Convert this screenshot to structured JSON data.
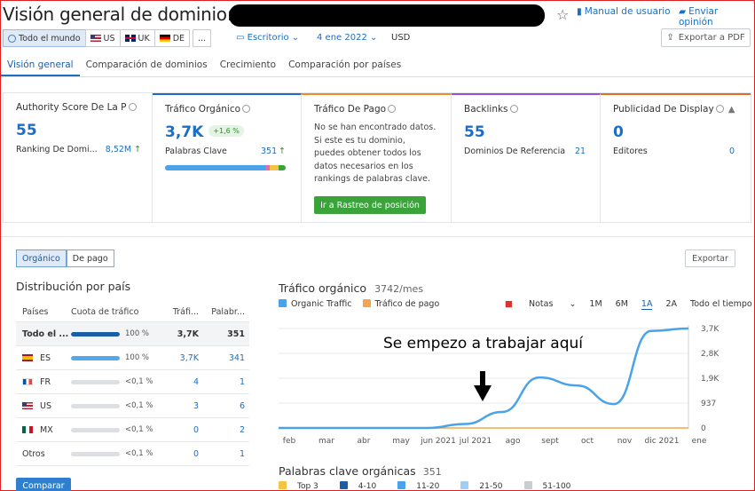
{
  "header": {
    "title": "Visión general de dominio:",
    "manual_label": "Manual de usuario",
    "feedback_label": "Enviar opinión"
  },
  "filters": {
    "regions": [
      {
        "label": "Todo el mundo",
        "selected": true
      },
      {
        "label": "US"
      },
      {
        "label": "UK"
      },
      {
        "label": "DE"
      },
      {
        "label": "..."
      }
    ],
    "device": "Escritorio",
    "date": "4 ene 2022",
    "currency": "USD",
    "export_pdf": "Exportar a PDF"
  },
  "tabs": [
    "Visión general",
    "Comparación de dominios",
    "Crecimiento",
    "Comparación por países"
  ],
  "kpis": {
    "authority": {
      "title": "Authority Score De La P",
      "value": "55",
      "sub_label": "Ranking De Domi...",
      "sub_value": "8,52M",
      "accent": "#1a6fc4"
    },
    "organic": {
      "title": "Tráfico Orgánico",
      "value": "3,7K",
      "change": "+1,6 %",
      "sub_label": "Palabras Clave",
      "sub_value": "351",
      "accent": "#1a6fc4"
    },
    "paid": {
      "title": "Tráfico De Pago",
      "text": "No se han encontrado datos. Si este es tu dominio, puedes obtener todos los datos necesarios en los rankings de palabras clave.",
      "button": "Ir a Rastreo de posición",
      "accent": "#f08a24"
    },
    "backlinks": {
      "title": "Backlinks",
      "value": "55",
      "sub_label": "Dominios De Referencia",
      "sub_value": "21",
      "accent": "#9b4fd1"
    },
    "display": {
      "title": "Publicidad De Display",
      "value": "0",
      "sub_label": "Editores",
      "sub_value": "0",
      "accent": "#e06d20"
    }
  },
  "section": {
    "seg_organic": "Orgánico",
    "seg_paid": "De pago",
    "export": "Exportar",
    "dist_title": "Distribución por país",
    "compare_button": "Comparar"
  },
  "country_table": {
    "headers": [
      "Países",
      "Cuota de tráfico",
      "Tráfi...",
      "Palabr..."
    ],
    "rows": [
      {
        "country": "Todo el ...",
        "flag": "",
        "share": 100,
        "share_label": "100 %",
        "traffic": "3,7K",
        "keywords": "351",
        "bar_color": "#1a5ea6"
      },
      {
        "country": "ES",
        "flag": "es",
        "share": 100,
        "share_label": "100 %",
        "traffic": "3,7K",
        "keywords": "341",
        "bar_color": "#55a8ea"
      },
      {
        "country": "FR",
        "flag": "fr",
        "share": 0.1,
        "share_label": "<0,1 %",
        "traffic": "4",
        "keywords": "1",
        "bar_color": "#55a8ea"
      },
      {
        "country": "US",
        "flag": "us",
        "share": 0.1,
        "share_label": "<0,1 %",
        "traffic": "3",
        "keywords": "6",
        "bar_color": "#55a8ea"
      },
      {
        "country": "MX",
        "flag": "mx",
        "share": 0.1,
        "share_label": "<0,1 %",
        "traffic": "0",
        "keywords": "2",
        "bar_color": "#55a8ea"
      },
      {
        "country": "Otros",
        "flag": "",
        "share": 0.1,
        "share_label": "<0,1 %",
        "traffic": "0",
        "keywords": "1",
        "bar_color": "#55a8ea"
      }
    ]
  },
  "traffic_chart": {
    "title": "Tráfico orgánico",
    "subtitle": "3742/mes",
    "legend": [
      {
        "label": "Organic Traffic",
        "color": "#4aa3e8"
      },
      {
        "label": "Tráfico de pago",
        "color": "#f5a54a"
      }
    ],
    "notes_label": "Notas",
    "periods": [
      "1M",
      "6M",
      "1A",
      "2A",
      "Todo el tiempo"
    ],
    "selected_period": "1A",
    "annotation": "Se empezo a trabajar aquí"
  },
  "chart_data": {
    "type": "line",
    "x": [
      "feb",
      "mar",
      "abr",
      "may",
      "jun 2021",
      "jul 2021",
      "ago",
      "sept",
      "oct",
      "nov",
      "dic 2021",
      "ene"
    ],
    "series": [
      {
        "name": "Organic Traffic",
        "values": [
          0,
          0,
          0,
          0,
          0,
          150,
          600,
          1900,
          1600,
          900,
          3650,
          3742
        ]
      },
      {
        "name": "Tráfico de pago",
        "values": [
          0,
          0,
          0,
          0,
          0,
          0,
          0,
          0,
          0,
          0,
          0,
          0
        ]
      }
    ],
    "y_ticks": [
      "0",
      "937",
      "1,9K",
      "2,8K",
      "3,7K"
    ],
    "ylim": [
      0,
      3742
    ],
    "grid": true
  },
  "keywords_section": {
    "title": "Palabras clave orgánicas",
    "count": "351",
    "legend": [
      {
        "label": "Top 3",
        "color": "#f5c242"
      },
      {
        "label": "4-10",
        "color": "#1a5ea6"
      },
      {
        "label": "11-20",
        "color": "#4aa3e8"
      },
      {
        "label": "21-50",
        "color": "#9fd0f3"
      },
      {
        "label": "51-100",
        "color": "#c9cdd2"
      }
    ]
  }
}
